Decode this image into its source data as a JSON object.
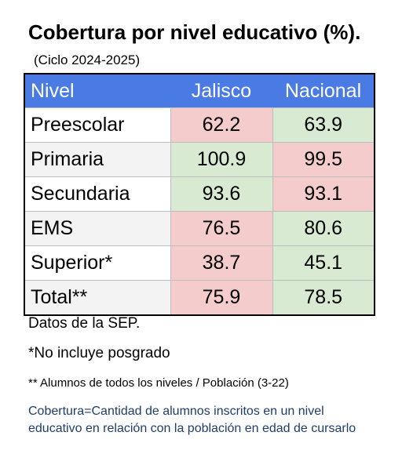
{
  "title": "Cobertura por nivel educativo (%).",
  "subtitle": "(Ciclo 2024-2025)",
  "table": {
    "headers": [
      "Nivel",
      "Jalisco",
      "Nacional"
    ],
    "rows": [
      {
        "nivel": "Preescolar",
        "jalisco": "62.2",
        "nacional": "63.9",
        "jalisco_color": "red",
        "nacional_color": "green"
      },
      {
        "nivel": "Primaria",
        "jalisco": "100.9",
        "nacional": "99.5",
        "jalisco_color": "green",
        "nacional_color": "red"
      },
      {
        "nivel": "Secundaria",
        "jalisco": "93.6",
        "nacional": "93.1",
        "jalisco_color": "green",
        "nacional_color": "red"
      },
      {
        "nivel": "EMS",
        "jalisco": "76.5",
        "nacional": "80.6",
        "jalisco_color": "red",
        "nacional_color": "green"
      },
      {
        "nivel": "Superior*",
        "jalisco": "38.7",
        "nacional": "45.1",
        "jalisco_color": "red",
        "nacional_color": "green"
      },
      {
        "nivel": "Total**",
        "jalisco": "75.9",
        "nacional": "78.5",
        "jalisco_color": "red",
        "nacional_color": "green"
      }
    ]
  },
  "colors": {
    "header": "#4a7be5",
    "red": "#f4cccc",
    "green": "#d9ead3",
    "footnote_blue": "#1f3d6b"
  },
  "notes": {
    "source": "Datos de la SEP.",
    "superior": "*No incluye posgrado",
    "total": "** Alumnos de todos los niveles / Población (3-22)",
    "definition": "Cobertura=Cantidad de alumnos inscritos en un nivel educativo en relación con la población en edad de cursarlo"
  }
}
